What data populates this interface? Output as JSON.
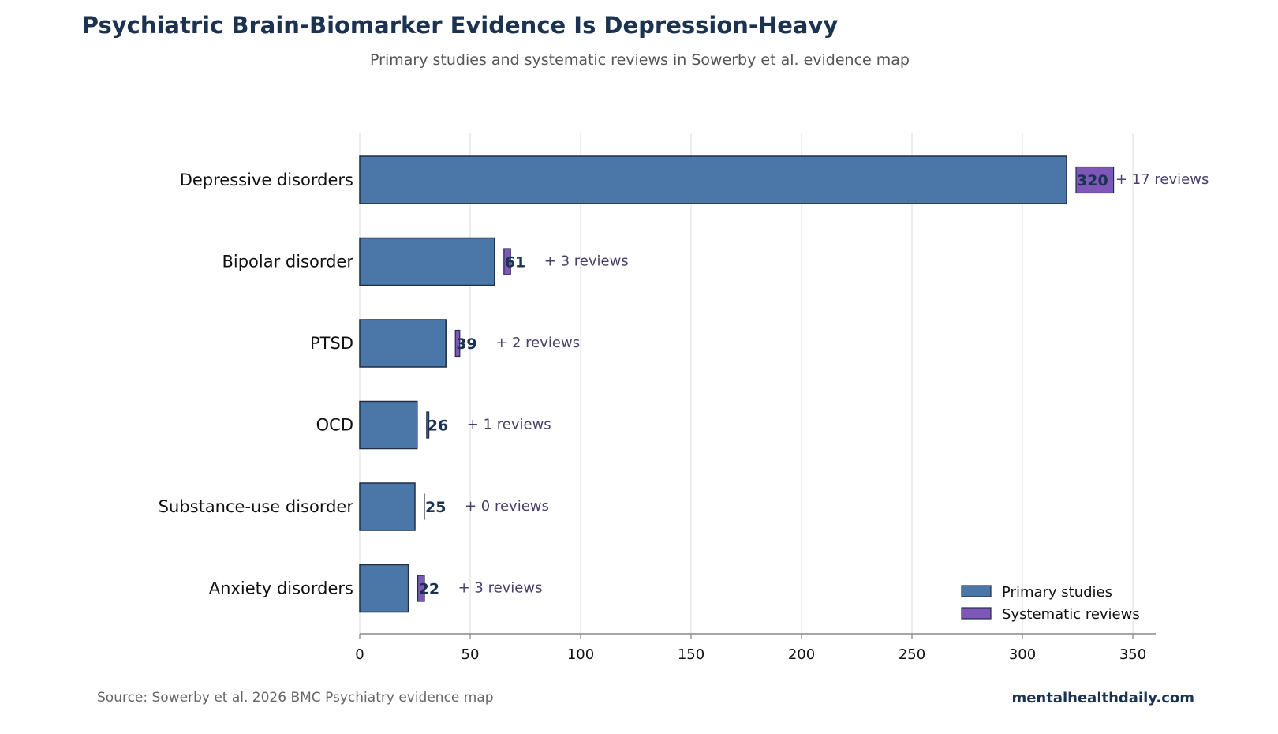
{
  "chart_data": {
    "type": "bar",
    "orientation": "horizontal",
    "title": "Psychiatric Brain-Biomarker Evidence Is Depression-Heavy",
    "subtitle": "Primary studies and systematic reviews in Sowerby et al. evidence map",
    "categories": [
      "Depressive disorders",
      "Bipolar disorder",
      "PTSD",
      "OCD",
      "Substance-use disorder",
      "Anxiety disorders"
    ],
    "series": [
      {
        "name": "Primary studies",
        "values": [
          320,
          61,
          39,
          26,
          25,
          22
        ],
        "color": "#4a76a8"
      },
      {
        "name": "Systematic reviews",
        "values": [
          17,
          3,
          2,
          1,
          0,
          3
        ],
        "color": "#7e57b8"
      }
    ],
    "value_labels": [
      "320",
      "61",
      "39",
      "26",
      "25",
      "22"
    ],
    "review_labels": [
      "+ 17 reviews",
      "+ 3 reviews",
      "+ 2 reviews",
      "+ 1 reviews",
      "+ 0 reviews",
      "+ 3 reviews"
    ],
    "xlim": [
      0,
      360
    ],
    "xticks": [
      0,
      50,
      100,
      150,
      200,
      250,
      300,
      350
    ],
    "xtick_labels": [
      "0",
      "50",
      "100",
      "150",
      "200",
      "250",
      "300",
      "350"
    ],
    "xlabel": "",
    "ylabel": "",
    "grid": "vertical",
    "legend": "bottom-right"
  },
  "footer": {
    "source": "Source: Sowerby et al. 2026 BMC Psychiatry evidence map",
    "brand": "mentalhealthdaily.com"
  },
  "colors": {
    "title": "#1b3350",
    "subtitle": "#555555",
    "value_label": "#1b3350",
    "review_label": "#4a3f6b",
    "grid": "#e3e3e3",
    "axis": "#888888",
    "bar_edge": "#1f2f44",
    "source": "#666666",
    "brand": "#1b3350"
  }
}
